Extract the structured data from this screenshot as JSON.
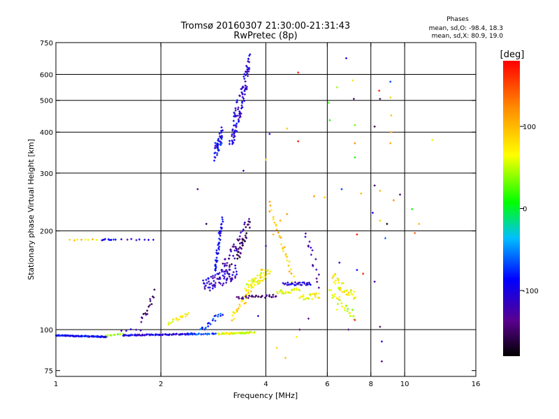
{
  "chart_data": {
    "type": "scatter",
    "title": "Tromsø 20160307 21:30:00-21:31:43",
    "subtitle": "RwPretec (8p)",
    "xlabel": "Frequency [MHz]",
    "ylabel": "Stationary phase Virtual Height [km]",
    "x_scale": "log",
    "y_scale": "log",
    "xlim": [
      1,
      16
    ],
    "ylim": [
      72,
      750
    ],
    "x_ticks": [
      1,
      2,
      4,
      6,
      8,
      10,
      16
    ],
    "x_tick_labels": [
      "1",
      "2",
      "4",
      "6",
      "8",
      "10",
      "16"
    ],
    "y_ticks": [
      75,
      100,
      200,
      300,
      400,
      500,
      600,
      750
    ],
    "y_tick_labels": [
      "75",
      "100",
      "200",
      "300",
      "400",
      "500",
      "600",
      "750"
    ],
    "x_gridlines": [
      2,
      4,
      6,
      8,
      10
    ],
    "y_gridlines": [
      100,
      200,
      300,
      400,
      500,
      600
    ],
    "grid": true,
    "colorbar": {
      "label": "[deg]",
      "range": [
        -180,
        180
      ],
      "ticks": [
        100,
        0,
        -100
      ],
      "tick_labels": [
        "100",
        "0",
        "-100"
      ]
    },
    "stats": {
      "header": "Phases",
      "o_line": "mean, sd,O: -98.4, 18.3",
      "x_line": "mean, sd,X:  80.9, 19.0"
    },
    "segments": [
      {
        "f": [
          1.0,
          1.4
        ],
        "h": [
          96,
          95
        ],
        "phase": -95,
        "spread": 0.6,
        "n": 90
      },
      {
        "f": [
          1.4,
          1.55
        ],
        "h": [
          96,
          97
        ],
        "phase": 40,
        "spread": 1.0,
        "n": 10
      },
      {
        "f": [
          1.55,
          2.5
        ],
        "h": [
          96,
          97
        ],
        "phase": -100,
        "spread": 0.8,
        "n": 90
      },
      {
        "f": [
          2.4,
          2.9
        ],
        "h": [
          97,
          97
        ],
        "phase": -75,
        "spread": 0.8,
        "n": 25
      },
      {
        "f": [
          2.9,
          3.7
        ],
        "h": [
          97,
          98
        ],
        "phase": 65,
        "spread": 1.0,
        "n": 50
      },
      {
        "f": [
          3.2,
          3.9
        ],
        "h": [
          108,
          150
        ],
        "phase": 80,
        "spread": 7,
        "n": 40
      },
      {
        "f": [
          1.1,
          1.3
        ],
        "h": [
          188,
          188
        ],
        "phase": 80,
        "spread": 1.0,
        "n": 8
      },
      {
        "f": [
          1.35,
          1.48
        ],
        "h": [
          188,
          188
        ],
        "phase": -95,
        "spread": 1.0,
        "n": 10
      },
      {
        "f": [
          1.55,
          1.9
        ],
        "h": [
          188,
          188
        ],
        "phase": -110,
        "spread": 1.0,
        "n": 8
      },
      {
        "f": [
          1.55,
          1.75
        ],
        "h": [
          100,
          100
        ],
        "phase": -120,
        "spread": 2,
        "n": 5
      },
      {
        "f": [
          1.75,
          1.92
        ],
        "h": [
          105,
          128
        ],
        "phase": -140,
        "spread": 8,
        "n": 16
      },
      {
        "f": [
          2.1,
          2.4
        ],
        "h": [
          105,
          112
        ],
        "phase": 70,
        "spread": 3,
        "n": 18
      },
      {
        "f": [
          2.6,
          3.0
        ],
        "h": [
          100,
          112
        ],
        "phase": -75,
        "spread": 4,
        "n": 20
      },
      {
        "f": [
          2.65,
          3.3
        ],
        "h": [
          135,
          150
        ],
        "phase": -110,
        "spread": 10,
        "n": 70
      },
      {
        "f": [
          2.85,
          3.0
        ],
        "h": [
          150,
          215
        ],
        "phase": -90,
        "spread": 6,
        "n": 45
      },
      {
        "f": [
          3.0,
          3.5
        ],
        "h": [
          150,
          200
        ],
        "phase": -130,
        "spread": 12,
        "n": 50
      },
      {
        "f": [
          3.3,
          3.6
        ],
        "h": [
          165,
          210
        ],
        "phase": -155,
        "spread": 10,
        "n": 25
      },
      {
        "f": [
          3.5,
          4.1
        ],
        "h": [
          135,
          150
        ],
        "phase": 65,
        "spread": 7,
        "n": 35
      },
      {
        "f": [
          3.3,
          4.3
        ],
        "h": [
          125,
          127
        ],
        "phase": -140,
        "spread": 2,
        "n": 30
      },
      {
        "f": [
          4.1,
          4.8
        ],
        "h": [
          240,
          140
        ],
        "phase": 95,
        "spread": 8,
        "n": 30
      },
      {
        "f": [
          4.3,
          5.0
        ],
        "h": [
          130,
          132
        ],
        "phase": 60,
        "spread": 3,
        "n": 20
      },
      {
        "f": [
          4.5,
          5.4
        ],
        "h": [
          138,
          138
        ],
        "phase": -105,
        "spread": 2,
        "n": 30
      },
      {
        "f": [
          5.2,
          5.7
        ],
        "h": [
          195,
          140
        ],
        "phase": -130,
        "spread": 10,
        "n": 16
      },
      {
        "f": [
          5.0,
          5.7
        ],
        "h": [
          125,
          127
        ],
        "phase": 70,
        "spread": 4,
        "n": 25
      },
      {
        "f": [
          6.2,
          7.2
        ],
        "h": [
          145,
          125
        ],
        "phase": 70,
        "spread": 8,
        "n": 35
      },
      {
        "f": [
          6.1,
          7.2
        ],
        "h": [
          130,
          110
        ],
        "phase": 55,
        "spread": 6,
        "n": 25
      },
      {
        "f": [
          2.85,
          3.0
        ],
        "h": [
          345,
          400
        ],
        "phase": -90,
        "spread": 12,
        "n": 45
      },
      {
        "f": [
          3.2,
          3.6
        ],
        "h": [
          400,
          640
        ],
        "phase": -105,
        "spread": 20,
        "n": 90
      },
      {
        "f": [
          3.15,
          3.3
        ],
        "h": [
          375,
          410
        ],
        "phase": -100,
        "spread": 10,
        "n": 10
      }
    ],
    "scatter_points": [
      {
        "f": 4.95,
        "h": 608,
        "phase": 170
      },
      {
        "f": 4.95,
        "h": 375,
        "phase": 170
      },
      {
        "f": 6.8,
        "h": 672,
        "phase": -100
      },
      {
        "f": 6.4,
        "h": 548,
        "phase": 40
      },
      {
        "f": 7.1,
        "h": 575,
        "phase": 80
      },
      {
        "f": 7.15,
        "h": 505,
        "phase": -150
      },
      {
        "f": 6.05,
        "h": 492,
        "phase": 20
      },
      {
        "f": 6.1,
        "h": 435,
        "phase": 10
      },
      {
        "f": 7.2,
        "h": 420,
        "phase": 30
      },
      {
        "f": 7.2,
        "h": 370,
        "phase": 120
      },
      {
        "f": 7.2,
        "h": 335,
        "phase": 10
      },
      {
        "f": 4.6,
        "h": 410,
        "phase": 95
      },
      {
        "f": 4.1,
        "h": 395,
        "phase": -100
      },
      {
        "f": 4.0,
        "h": 330,
        "phase": 90
      },
      {
        "f": 8.45,
        "h": 535,
        "phase": 170
      },
      {
        "f": 8.5,
        "h": 505,
        "phase": -150
      },
      {
        "f": 9.1,
        "h": 570,
        "phase": -70
      },
      {
        "f": 9.1,
        "h": 510,
        "phase": 90
      },
      {
        "f": 9.15,
        "h": 450,
        "phase": 100
      },
      {
        "f": 9.15,
        "h": 400,
        "phase": 110
      },
      {
        "f": 9.1,
        "h": 370,
        "phase": 110
      },
      {
        "f": 8.2,
        "h": 416,
        "phase": -160
      },
      {
        "f": 12.0,
        "h": 378,
        "phase": 60
      },
      {
        "f": 8.2,
        "h": 275,
        "phase": -150
      },
      {
        "f": 9.7,
        "h": 258,
        "phase": -150
      },
      {
        "f": 10.5,
        "h": 233,
        "phase": 10
      },
      {
        "f": 11.0,
        "h": 210,
        "phase": 100
      },
      {
        "f": 10.7,
        "h": 197,
        "phase": 140
      },
      {
        "f": 8.1,
        "h": 227,
        "phase": -100
      },
      {
        "f": 8.9,
        "h": 210,
        "phase": -170
      },
      {
        "f": 8.8,
        "h": 190,
        "phase": -60
      },
      {
        "f": 8.5,
        "h": 215,
        "phase": 90
      },
      {
        "f": 7.3,
        "h": 195,
        "phase": 170
      },
      {
        "f": 6.6,
        "h": 268,
        "phase": -70
      },
      {
        "f": 7.5,
        "h": 260,
        "phase": 100
      },
      {
        "f": 2.55,
        "h": 268,
        "phase": -140
      },
      {
        "f": 3.45,
        "h": 305,
        "phase": -100
      },
      {
        "f": 2.7,
        "h": 210,
        "phase": -160
      },
      {
        "f": 6.5,
        "h": 160,
        "phase": -110
      },
      {
        "f": 7.3,
        "h": 152,
        "phase": -90
      },
      {
        "f": 7.6,
        "h": 148,
        "phase": 170
      },
      {
        "f": 8.2,
        "h": 140,
        "phase": -120
      },
      {
        "f": 6.9,
        "h": 100,
        "phase": -140
      },
      {
        "f": 8.5,
        "h": 102,
        "phase": -150
      },
      {
        "f": 8.6,
        "h": 92,
        "phase": -110
      },
      {
        "f": 8.6,
        "h": 80,
        "phase": -140
      },
      {
        "f": 7.2,
        "h": 107,
        "phase": 170
      },
      {
        "f": 5.0,
        "h": 100,
        "phase": -150
      },
      {
        "f": 4.9,
        "h": 95,
        "phase": 70
      },
      {
        "f": 4.3,
        "h": 88,
        "phase": 85
      },
      {
        "f": 4.55,
        "h": 82,
        "phase": 95
      },
      {
        "f": 3.8,
        "h": 110,
        "phase": -110
      },
      {
        "f": 5.3,
        "h": 108,
        "phase": -140
      },
      {
        "f": 6.8,
        "h": 118,
        "phase": 40
      },
      {
        "f": 6.4,
        "h": 115,
        "phase": 60
      },
      {
        "f": 8.5,
        "h": 265,
        "phase": 100
      },
      {
        "f": 9.3,
        "h": 248,
        "phase": 120
      },
      {
        "f": 5.5,
        "h": 255,
        "phase": 120
      },
      {
        "f": 5.9,
        "h": 253,
        "phase": 90
      },
      {
        "f": 4.2,
        "h": 195,
        "phase": 100
      },
      {
        "f": 4.4,
        "h": 215,
        "phase": 110
      },
      {
        "f": 4.6,
        "h": 225,
        "phase": 120
      },
      {
        "f": 4.0,
        "h": 180,
        "phase": -120
      }
    ]
  }
}
